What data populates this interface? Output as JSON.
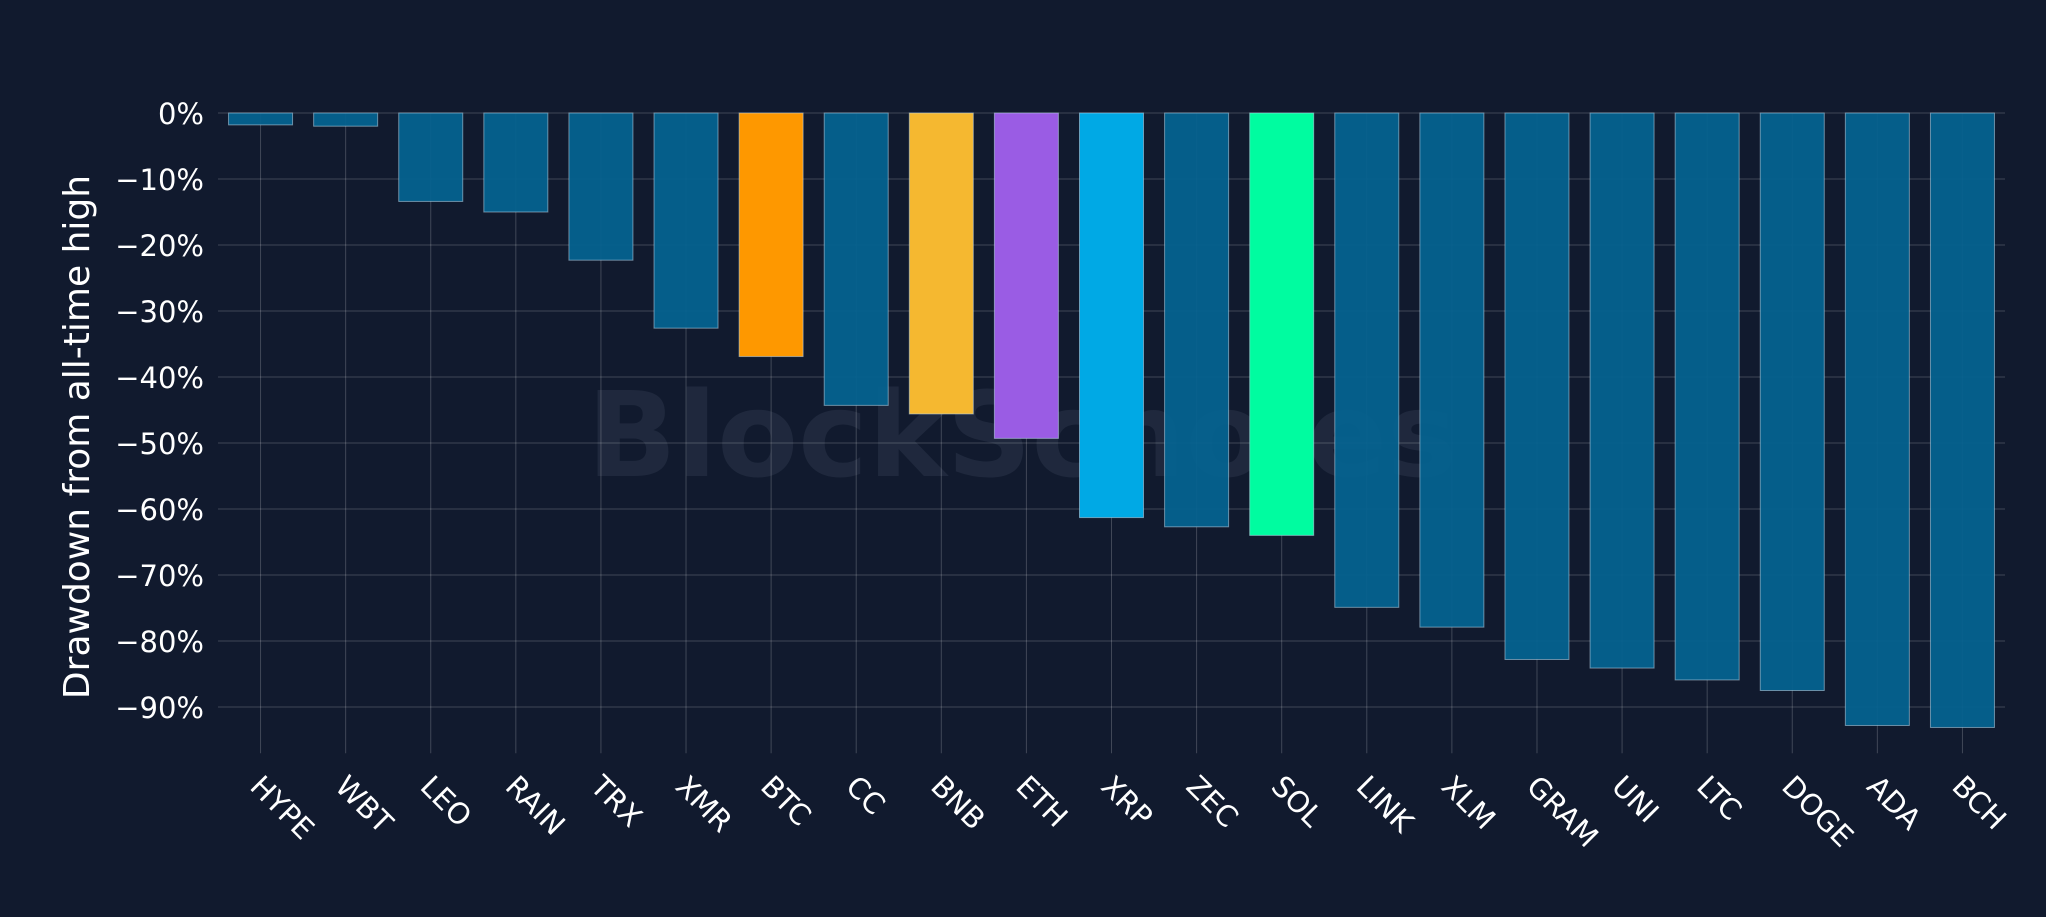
{
  "chart_data": {
    "type": "bar",
    "title": "",
    "xlabel": "",
    "ylabel": "Drawdown from all-time high",
    "ylim": [
      -97,
      0
    ],
    "yticks": [
      0,
      -10,
      -20,
      -30,
      -40,
      -50,
      -60,
      -70,
      -80,
      -90
    ],
    "ytick_labels": [
      "0%",
      "−10%",
      "−20%",
      "−30%",
      "−40%",
      "−50%",
      "−60%",
      "−70%",
      "−80%",
      "−90%"
    ],
    "grid": true,
    "watermark": "BlockScholes",
    "default_color": "#05628f",
    "categories": [
      "HYPE",
      "WBT",
      "LEO",
      "RAIN",
      "TRX",
      "XMR",
      "BTC",
      "CC",
      "BNB",
      "ETH",
      "XRP",
      "ZEC",
      "SOL",
      "LINK",
      "XLM",
      "GRAM",
      "UNI",
      "LTC",
      "DOGE",
      "ADA",
      "BCH"
    ],
    "values": [
      -1.8,
      -2.0,
      -13.4,
      -15.0,
      -22.3,
      -32.6,
      -36.9,
      -44.3,
      -45.6,
      -49.3,
      -61.3,
      -62.7,
      -64.0,
      -74.9,
      -77.9,
      -82.8,
      -84.1,
      -85.9,
      -87.5,
      -92.8,
      -93.1
    ],
    "colors": [
      "#05628f",
      "#05628f",
      "#05628f",
      "#05628f",
      "#05628f",
      "#05628f",
      "#fe9800",
      "#05628f",
      "#f5b830",
      "#9a5ce4",
      "#00a9e5",
      "#05628f",
      "#00fca0",
      "#05628f",
      "#05628f",
      "#05628f",
      "#05628f",
      "#05628f",
      "#05628f",
      "#05628f",
      "#05628f"
    ]
  }
}
